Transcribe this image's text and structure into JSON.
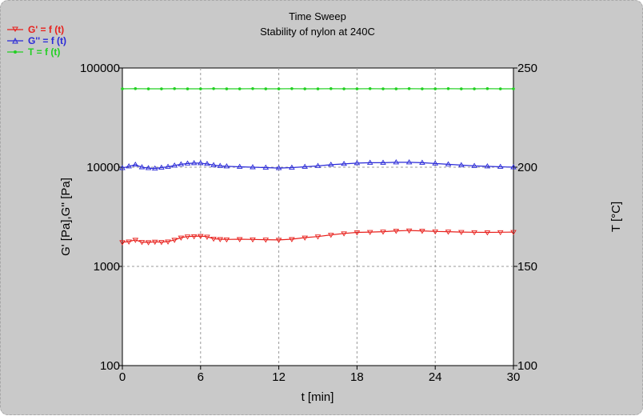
{
  "chart_data": {
    "type": "line",
    "title": "Time Sweep",
    "subtitle": "Stability of nylon at 240C",
    "xlabel": "t  [min]",
    "ylabel": "G' [Pa],G'' [Pa]",
    "y2label": "T [°C]",
    "xlim": [
      0,
      30
    ],
    "ylim": [
      100,
      100000
    ],
    "yscale": "log",
    "y2lim": [
      100,
      250
    ],
    "x_ticks": [
      0,
      6,
      12,
      18,
      24,
      30
    ],
    "y_ticks": [
      100,
      1000,
      10000,
      100000
    ],
    "y2_ticks": [
      100,
      150,
      200,
      250
    ],
    "x_tick_labels": [
      "0",
      "6",
      "12",
      "18",
      "24",
      "30"
    ],
    "y_tick_labels": [
      "100",
      "1000",
      "10000",
      "100000"
    ],
    "y2_tick_labels": [
      "100",
      "150",
      "200",
      "250"
    ],
    "grid": true,
    "legend_position": "top-left",
    "series": [
      {
        "name": "G' = f (t)",
        "axis": "left",
        "color": "#e8201c",
        "marker": "triangle-down",
        "x": [
          0,
          0.5,
          1,
          1.5,
          2,
          2.5,
          3,
          3.5,
          4,
          4.5,
          5,
          5.5,
          6,
          6.5,
          7,
          7.5,
          8,
          9,
          10,
          11,
          12,
          13,
          14,
          15,
          16,
          17,
          18,
          19,
          20,
          21,
          22,
          23,
          24,
          25,
          26,
          27,
          28,
          29,
          30
        ],
        "values": [
          1750,
          1780,
          1850,
          1760,
          1750,
          1770,
          1760,
          1780,
          1850,
          1950,
          2000,
          2010,
          2020,
          1990,
          1900,
          1880,
          1870,
          1880,
          1870,
          1860,
          1850,
          1880,
          1950,
          2000,
          2080,
          2150,
          2200,
          2220,
          2240,
          2280,
          2300,
          2280,
          2250,
          2240,
          2220,
          2210,
          2200,
          2210,
          2220
        ]
      },
      {
        "name": "G'' = f (t)",
        "axis": "left",
        "color": "#2a2ad8",
        "marker": "triangle-up",
        "x": [
          0,
          0.5,
          1,
          1.5,
          2,
          2.5,
          3,
          3.5,
          4,
          4.5,
          5,
          5.5,
          6,
          6.5,
          7,
          7.5,
          8,
          9,
          10,
          11,
          12,
          13,
          14,
          15,
          16,
          17,
          18,
          19,
          20,
          21,
          22,
          23,
          24,
          25,
          26,
          27,
          28,
          29,
          30
        ],
        "values": [
          9800,
          10200,
          10600,
          10000,
          9800,
          9700,
          9900,
          10100,
          10400,
          10700,
          10900,
          11000,
          11000,
          10800,
          10500,
          10300,
          10200,
          10100,
          10000,
          9900,
          9800,
          9900,
          10100,
          10300,
          10600,
          10800,
          11000,
          11100,
          11100,
          11200,
          11200,
          11100,
          10900,
          10700,
          10500,
          10300,
          10200,
          10100,
          10000
        ]
      },
      {
        "name": "T = f (t)",
        "axis": "right",
        "color": "#22d022",
        "marker": "dot",
        "x": [
          0,
          1,
          2,
          3,
          4,
          5,
          6,
          7,
          8,
          9,
          10,
          11,
          12,
          13,
          14,
          15,
          16,
          17,
          18,
          19,
          20,
          21,
          22,
          23,
          24,
          25,
          26,
          27,
          28,
          29,
          30
        ],
        "values": [
          239.5,
          239.6,
          239.5,
          239.5,
          239.6,
          239.5,
          239.5,
          239.6,
          239.5,
          239.5,
          239.6,
          239.5,
          239.5,
          239.6,
          239.5,
          239.5,
          239.6,
          239.5,
          239.5,
          239.6,
          239.5,
          239.5,
          239.6,
          239.5,
          239.5,
          239.6,
          239.5,
          239.5,
          239.6,
          239.5,
          239.5
        ]
      }
    ]
  }
}
